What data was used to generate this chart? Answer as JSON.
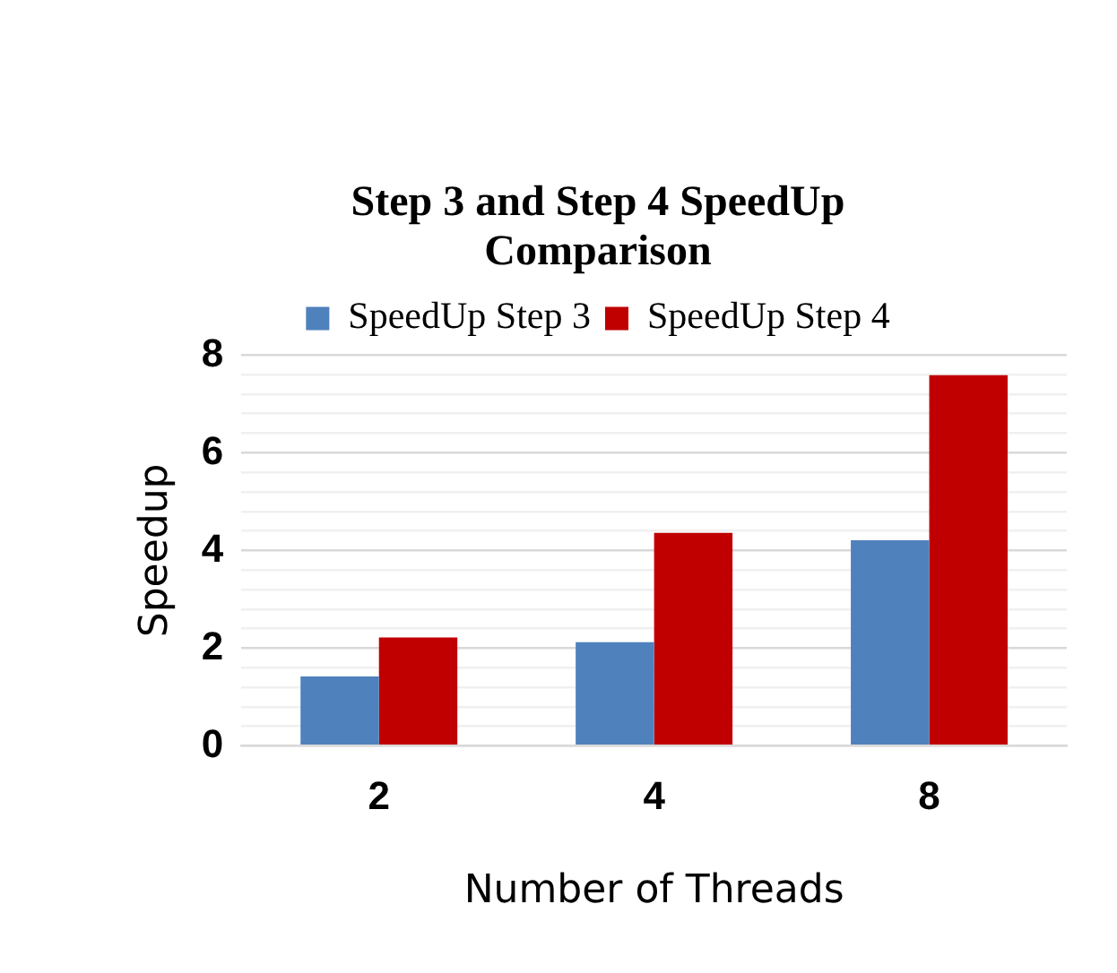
{
  "chart_data": {
    "type": "bar",
    "title": "Step 3 and Step 4 SpeedUp Comparison",
    "xlabel": "Number of Threads",
    "ylabel": "Speedup",
    "categories": [
      "2",
      "4",
      "8"
    ],
    "series": [
      {
        "name": "SpeedUp Step 3",
        "color": "#4f81bd",
        "values": [
          1.42,
          2.12,
          4.21
        ]
      },
      {
        "name": "SpeedUp Step 4",
        "color": "#c00000",
        "values": [
          2.22,
          4.36,
          7.59
        ]
      }
    ],
    "ylim": [
      0,
      8
    ],
    "yticks": [
      0,
      {
        "value": 0.4,
        "label": null
      },
      {
        "value": 0.8,
        "label": null
      },
      {
        "value": 1.2,
        "label": null
      },
      {
        "value": 1.6,
        "label": null
      },
      2,
      {
        "value": 2.4,
        "label": null
      },
      {
        "value": 2.8,
        "label": null
      },
      {
        "value": 3.2,
        "label": null
      },
      {
        "value": 3.6,
        "label": null
      },
      4,
      {
        "value": 4.4,
        "label": null
      },
      {
        "value": 4.8,
        "label": null
      },
      {
        "value": 5.2,
        "label": null
      },
      {
        "value": 5.6,
        "label": null
      },
      6,
      {
        "value": 6.4,
        "label": null
      },
      {
        "value": 6.8,
        "label": null
      },
      {
        "value": 7.2,
        "label": null
      },
      {
        "value": 7.6,
        "label": null
      },
      8
    ],
    "grid": "y",
    "legend": "top"
  }
}
